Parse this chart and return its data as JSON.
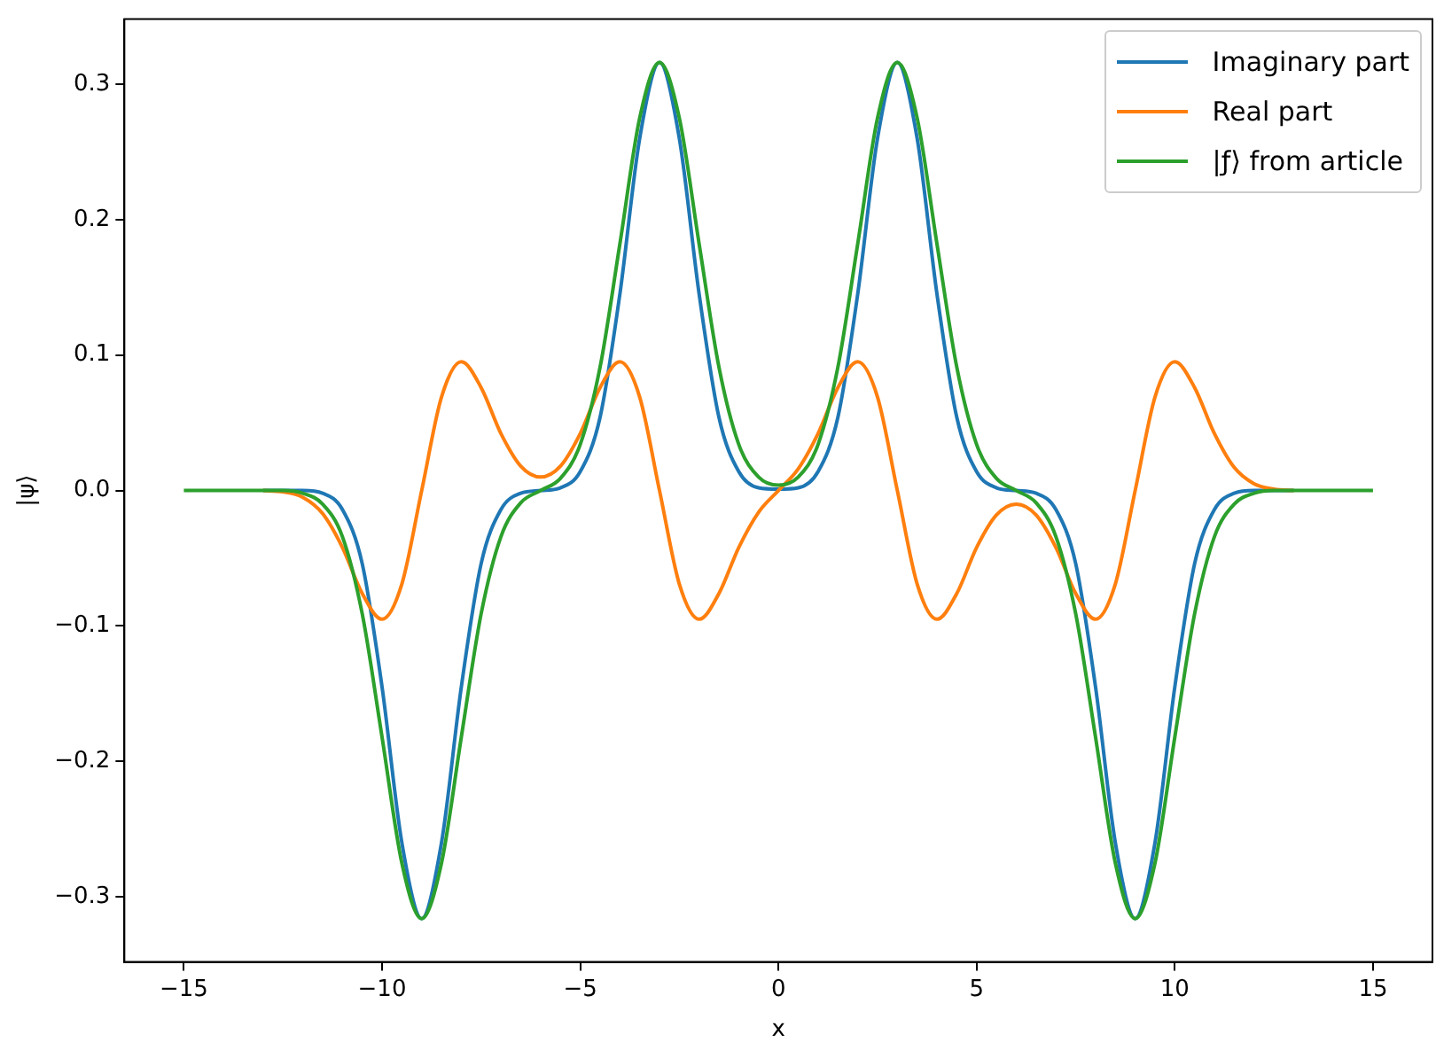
{
  "chart_data": {
    "type": "line",
    "xlabel": "x",
    "ylabel": "|ψ⟩",
    "legend": "top right",
    "grid": false,
    "marker": "none",
    "line_style": "solid",
    "x": [
      -15,
      -14.5,
      -14,
      -13.5,
      -13,
      -12.5,
      -12,
      -11.5,
      -11,
      -10.5,
      -10,
      -9.5,
      -9,
      -8.5,
      -8,
      -7.5,
      -7,
      -6.5,
      -6,
      -5.5,
      -5,
      -4.5,
      -4,
      -3.5,
      -3,
      -2.5,
      -2,
      -1.5,
      -1,
      -0.5,
      0,
      0.5,
      1,
      1.5,
      2,
      2.5,
      3,
      3.5,
      4,
      4.5,
      5,
      5.5,
      6,
      6.5,
      7,
      7.5,
      8,
      8.5,
      9,
      9.5,
      10,
      10.5,
      11,
      11.5,
      12,
      12.5,
      13,
      13.5,
      14,
      14.5,
      15
    ],
    "xlim": [
      -16.5,
      16.5
    ],
    "ylim": [
      -0.348,
      0.348
    ],
    "xticks": [
      {
        "value": -15,
        "label": "−15"
      },
      {
        "value": -10,
        "label": "−10"
      },
      {
        "value": -5,
        "label": "−5"
      },
      0,
      5,
      10,
      15
    ],
    "yticks": [
      {
        "value": -0.3,
        "label": "−0.3"
      },
      {
        "value": -0.2,
        "label": "−0.2"
      },
      {
        "value": -0.1,
        "label": "−0.1"
      },
      {
        "value": 0,
        "label": "0.0"
      },
      0.1,
      0.2,
      0.3
    ],
    "series": [
      {
        "name": "Imaginary part",
        "color": "#1f77b4",
        "values": [
          null,
          null,
          null,
          null,
          0,
          0,
          0,
          -0.002,
          -0.014,
          -0.054,
          -0.145,
          -0.26,
          -0.316,
          -0.26,
          -0.145,
          -0.054,
          -0.014,
          -0.002,
          0,
          0.002,
          0.014,
          0.054,
          0.145,
          0.26,
          0.316,
          0.26,
          0.145,
          0.054,
          0.014,
          0.002,
          0.001,
          0.002,
          0.014,
          0.054,
          0.145,
          0.26,
          0.316,
          0.26,
          0.145,
          0.054,
          0.014,
          0.002,
          0,
          -0.002,
          -0.014,
          -0.054,
          -0.145,
          -0.26,
          -0.316,
          -0.26,
          -0.145,
          -0.054,
          -0.014,
          -0.002,
          0,
          0,
          0,
          null,
          null,
          null,
          null
        ]
      },
      {
        "name": "Real part",
        "color": "#ff7f0e",
        "values": [
          null,
          null,
          null,
          null,
          0,
          -0.001,
          -0.005,
          -0.017,
          -0.042,
          -0.076,
          -0.095,
          -0.069,
          0,
          0.069,
          0.095,
          0.076,
          0.042,
          0.018,
          0.01,
          0.018,
          0.042,
          0.076,
          0.095,
          0.069,
          0,
          -0.069,
          -0.095,
          -0.076,
          -0.042,
          -0.016,
          0,
          0.016,
          0.042,
          0.076,
          0.095,
          0.069,
          0,
          -0.069,
          -0.095,
          -0.076,
          -0.042,
          -0.018,
          -0.01,
          -0.018,
          -0.042,
          -0.076,
          -0.095,
          -0.069,
          0,
          0.069,
          0.095,
          0.076,
          0.042,
          0.017,
          0.005,
          0.001,
          0,
          null,
          null,
          null,
          null
        ]
      },
      {
        "name": "|ƒ⟩ from article",
        "color": "#2ca02c",
        "values": [
          0,
          0,
          0,
          0,
          0,
          0,
          -0.002,
          -0.01,
          -0.034,
          -0.091,
          -0.182,
          -0.275,
          -0.316,
          -0.275,
          -0.182,
          -0.091,
          -0.034,
          -0.009,
          0,
          0.009,
          0.034,
          0.091,
          0.182,
          0.275,
          0.316,
          0.275,
          0.182,
          0.091,
          0.034,
          0.01,
          0.004,
          0.01,
          0.034,
          0.091,
          0.182,
          0.275,
          0.316,
          0.275,
          0.182,
          0.091,
          0.034,
          0.009,
          0,
          -0.009,
          -0.034,
          -0.091,
          -0.182,
          -0.275,
          -0.316,
          -0.275,
          -0.182,
          -0.091,
          -0.034,
          -0.01,
          -0.002,
          0,
          0,
          0,
          0,
          0,
          0
        ]
      }
    ]
  }
}
